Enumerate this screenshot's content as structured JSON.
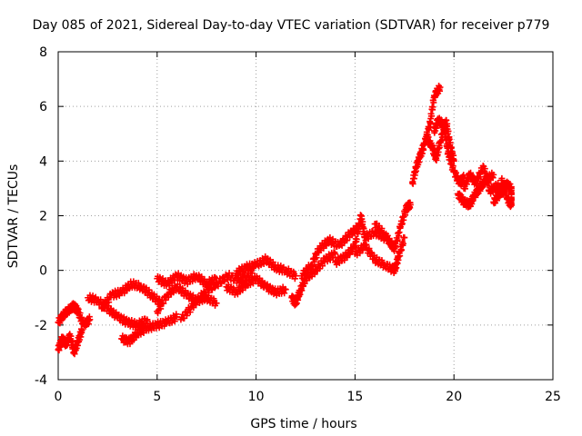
{
  "chart_data": {
    "type": "scatter",
    "title": "Day 085 of 2021, Sidereal Day-to-day VTEC variation (SDTVAR) for receiver p779",
    "xlabel": "GPS time / hours",
    "ylabel": "SDTVAR / TECUs",
    "xlim": [
      0,
      25
    ],
    "ylim": [
      -4,
      8
    ],
    "x_ticks": [
      "0",
      "5",
      "10",
      "15",
      "20",
      "25"
    ],
    "y_ticks": [
      "-4",
      "-2",
      "0",
      "2",
      "4",
      "6",
      "8"
    ],
    "grid": true,
    "marker": "+",
    "series": [
      {
        "name": "SDTVAR",
        "color": "#ff0000",
        "points": [
          [
            0.0,
            -2.9
          ],
          [
            0.2,
            -2.5
          ],
          [
            0.4,
            -2.7
          ],
          [
            0.6,
            -2.4
          ],
          [
            0.8,
            -3.0
          ],
          [
            1.0,
            -2.6
          ],
          [
            1.2,
            -2.2
          ],
          [
            0.0,
            -1.9
          ],
          [
            0.3,
            -1.6
          ],
          [
            0.6,
            -1.4
          ],
          [
            0.8,
            -1.3
          ],
          [
            1.0,
            -1.5
          ],
          [
            1.3,
            -2.0
          ],
          [
            1.6,
            -1.8
          ],
          [
            1.5,
            -1.0
          ],
          [
            2.0,
            -1.1
          ],
          [
            2.5,
            -1.4
          ],
          [
            3.0,
            -1.7
          ],
          [
            3.5,
            -1.9
          ],
          [
            4.0,
            -2.0
          ],
          [
            4.5,
            -1.8
          ],
          [
            2.2,
            -1.4
          ],
          [
            2.7,
            -0.9
          ],
          [
            3.2,
            -0.8
          ],
          [
            3.7,
            -0.5
          ],
          [
            4.2,
            -0.6
          ],
          [
            4.7,
            -0.9
          ],
          [
            5.2,
            -1.2
          ],
          [
            3.2,
            -2.5
          ],
          [
            3.6,
            -2.6
          ],
          [
            4.0,
            -2.3
          ],
          [
            4.5,
            -2.1
          ],
          [
            5.0,
            -2.0
          ],
          [
            5.5,
            -1.9
          ],
          [
            6.0,
            -1.7
          ],
          [
            5.0,
            -1.5
          ],
          [
            5.5,
            -0.9
          ],
          [
            6.0,
            -0.6
          ],
          [
            6.5,
            -0.9
          ],
          [
            7.0,
            -1.1
          ],
          [
            7.5,
            -1.0
          ],
          [
            8.0,
            -1.2
          ],
          [
            5.0,
            -0.3
          ],
          [
            5.5,
            -0.5
          ],
          [
            6.0,
            -0.2
          ],
          [
            6.5,
            -0.4
          ],
          [
            7.0,
            -0.2
          ],
          [
            7.5,
            -0.5
          ],
          [
            8.0,
            -0.3
          ],
          [
            6.2,
            -1.8
          ],
          [
            6.8,
            -1.3
          ],
          [
            7.4,
            -0.8
          ],
          [
            8.0,
            -0.5
          ],
          [
            8.6,
            -0.2
          ],
          [
            9.2,
            -0.4
          ],
          [
            9.8,
            -0.1
          ],
          [
            8.5,
            -0.6
          ],
          [
            9.0,
            -0.8
          ],
          [
            9.5,
            -0.5
          ],
          [
            10.0,
            -0.3
          ],
          [
            10.5,
            -0.6
          ],
          [
            11.0,
            -0.8
          ],
          [
            11.5,
            -0.7
          ],
          [
            9.0,
            -0.1
          ],
          [
            9.5,
            0.1
          ],
          [
            10.0,
            0.2
          ],
          [
            10.5,
            0.4
          ],
          [
            11.0,
            0.1
          ],
          [
            11.5,
            0.0
          ],
          [
            12.0,
            -0.2
          ],
          [
            11.8,
            -1.0
          ],
          [
            12.0,
            -1.2
          ],
          [
            12.2,
            -0.8
          ],
          [
            12.5,
            -0.3
          ],
          [
            13.0,
            0.0
          ],
          [
            13.5,
            0.4
          ],
          [
            14.0,
            0.6
          ],
          [
            12.3,
            -0.2
          ],
          [
            12.8,
            0.2
          ],
          [
            13.2,
            0.8
          ],
          [
            13.7,
            1.1
          ],
          [
            14.2,
            0.9
          ],
          [
            14.7,
            1.3
          ],
          [
            15.2,
            1.6
          ],
          [
            14.0,
            0.3
          ],
          [
            14.5,
            0.5
          ],
          [
            15.0,
            0.9
          ],
          [
            15.3,
            2.0
          ],
          [
            15.5,
            1.2
          ],
          [
            16.0,
            1.4
          ],
          [
            16.5,
            1.2
          ],
          [
            15.0,
            0.6
          ],
          [
            15.5,
            0.9
          ],
          [
            16.0,
            0.4
          ],
          [
            16.5,
            0.2
          ],
          [
            17.0,
            0.0
          ],
          [
            17.2,
            0.5
          ],
          [
            17.5,
            1.2
          ],
          [
            16.0,
            1.7
          ],
          [
            16.5,
            1.3
          ],
          [
            16.8,
            1.0
          ],
          [
            17.0,
            0.8
          ],
          [
            17.3,
            1.6
          ],
          [
            17.6,
            2.3
          ],
          [
            17.8,
            2.4
          ],
          [
            17.9,
            3.2
          ],
          [
            18.1,
            3.8
          ],
          [
            18.3,
            4.2
          ],
          [
            18.5,
            4.6
          ],
          [
            18.8,
            5.4
          ],
          [
            19.0,
            6.4
          ],
          [
            19.3,
            6.7
          ],
          [
            18.6,
            4.9
          ],
          [
            18.9,
            4.5
          ],
          [
            19.1,
            4.1
          ],
          [
            19.3,
            4.7
          ],
          [
            19.6,
            5.5
          ],
          [
            19.8,
            4.6
          ],
          [
            20.0,
            4.0
          ],
          [
            19.0,
            5.1
          ],
          [
            19.2,
            5.5
          ],
          [
            19.5,
            5.3
          ],
          [
            19.7,
            4.3
          ],
          [
            20.0,
            3.6
          ],
          [
            20.3,
            3.2
          ],
          [
            20.5,
            3.4
          ],
          [
            20.2,
            2.8
          ],
          [
            20.5,
            2.5
          ],
          [
            20.8,
            2.4
          ],
          [
            21.0,
            2.7
          ],
          [
            21.3,
            3.0
          ],
          [
            21.6,
            3.3
          ],
          [
            22.0,
            3.5
          ],
          [
            20.5,
            3.0
          ],
          [
            20.8,
            3.5
          ],
          [
            21.1,
            3.2
          ],
          [
            21.5,
            3.8
          ],
          [
            21.8,
            2.9
          ],
          [
            22.2,
            3.1
          ],
          [
            22.5,
            2.8
          ],
          [
            22.0,
            2.5
          ],
          [
            22.3,
            2.8
          ],
          [
            22.6,
            3.2
          ],
          [
            22.9,
            3.0
          ],
          [
            22.9,
            2.4
          ],
          [
            22.7,
            2.6
          ],
          [
            22.4,
            3.3
          ]
        ]
      }
    ]
  }
}
